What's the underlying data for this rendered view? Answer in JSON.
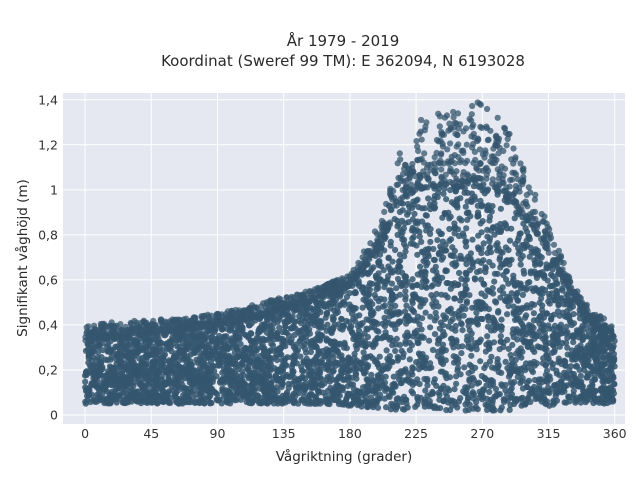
{
  "chart_data": {
    "type": "scatter",
    "title": "År 1979 - 2019",
    "subtitle": "Koordinat (Sweref 99 TM): E 362094, N 6193028",
    "xlabel": "Vågriktning (grader)",
    "ylabel": "Signifikant våghöjd (m)",
    "xlim": [
      -15,
      367
    ],
    "ylim": [
      -0.04,
      1.43
    ],
    "xticks": [
      0,
      45,
      90,
      135,
      180,
      225,
      270,
      315,
      360
    ],
    "xtick_labels": [
      "0",
      "45",
      "90",
      "135",
      "180",
      "225",
      "270",
      "315",
      "360"
    ],
    "yticks": [
      0,
      0.2,
      0.4,
      0.6,
      0.8,
      1.0,
      1.2,
      1.4
    ],
    "ytick_labels": [
      "0",
      "0,2",
      "0,4",
      "0,6",
      "0,8",
      "1",
      "1,2",
      "1,4"
    ],
    "grid": true,
    "legend": "none",
    "colors": {
      "marker": "#34566e",
      "plot_background": "#e5e8f0",
      "grid": "#ffffff"
    },
    "envelope": {
      "x": [
        0,
        30,
        45,
        90,
        120,
        150,
        180,
        200,
        215,
        225,
        240,
        255,
        270,
        285,
        300,
        315,
        330,
        345,
        360
      ],
      "y_max": [
        0.4,
        0.42,
        0.42,
        0.45,
        0.5,
        0.55,
        0.62,
        0.85,
        1.2,
        1.3,
        1.35,
        1.35,
        1.4,
        1.3,
        1.1,
        0.85,
        0.6,
        0.45,
        0.42
      ],
      "y_dense_max": [
        0.33,
        0.35,
        0.36,
        0.4,
        0.44,
        0.5,
        0.57,
        0.75,
        0.95,
        1.0,
        1.02,
        1.03,
        1.05,
        0.98,
        0.88,
        0.72,
        0.55,
        0.4,
        0.35
      ],
      "y_min": [
        0.05,
        0.05,
        0.05,
        0.05,
        0.05,
        0.05,
        0.04,
        0.03,
        0.02,
        0.02,
        0.02,
        0.02,
        0.02,
        0.02,
        0.03,
        0.04,
        0.05,
        0.05,
        0.05
      ]
    }
  }
}
